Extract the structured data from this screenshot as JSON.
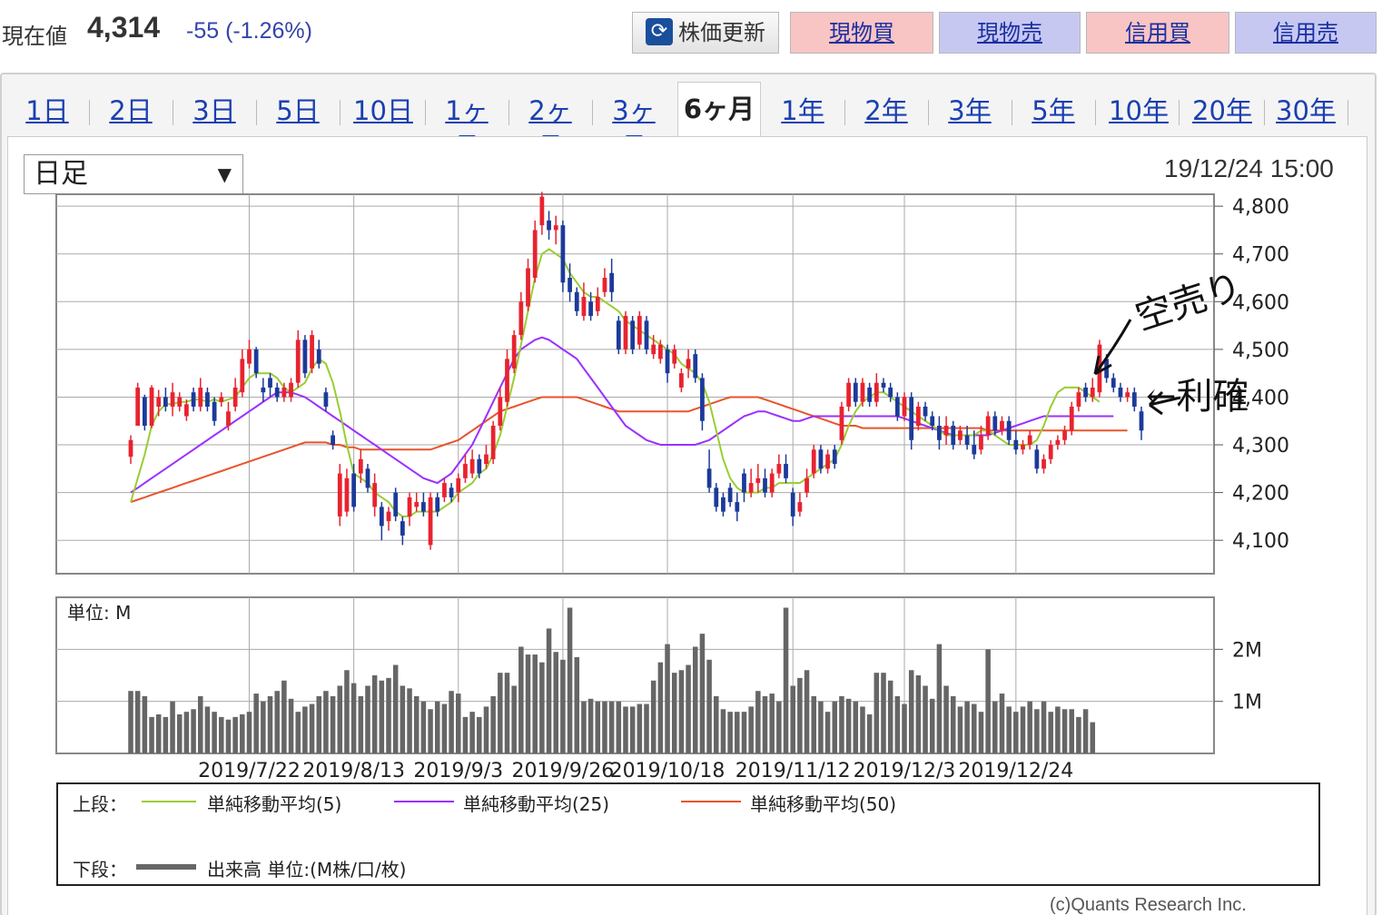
{
  "header": {
    "price_label": "現在値",
    "price_value": "4,314",
    "price_change": "-55 (-1.26%)",
    "refresh_label": "株価更新",
    "buttons": [
      "現物買",
      "現物売",
      "信用買",
      "信用売"
    ]
  },
  "tabs": [
    {
      "label": "1日"
    },
    {
      "label": "2日"
    },
    {
      "label": "3日"
    },
    {
      "label": "5日"
    },
    {
      "label": "10日"
    },
    {
      "label": "1ヶ月"
    },
    {
      "label": "2ヶ月"
    },
    {
      "label": "3ヶ月"
    },
    {
      "label": "6ヶ月",
      "active": true
    },
    {
      "label": "1年"
    },
    {
      "label": "2年"
    },
    {
      "label": "3年"
    },
    {
      "label": "5年"
    },
    {
      "label": "10年"
    },
    {
      "label": "20年"
    },
    {
      "label": "30年"
    }
  ],
  "controls": {
    "period_select": "日足",
    "datetime": "19/12/24 15:00"
  },
  "legend": {
    "upper_label": "上段：",
    "ma5_label": "単純移動平均(5)",
    "ma25_label": "単純移動平均(25)",
    "ma50_label": "単純移動平均(50)",
    "lower_label": "下段：",
    "volume_label": "出来高 単位:(M株/口/枚)"
  },
  "copyright": "(c)Quants Research Inc.",
  "annotations": {
    "karauri": "空売り",
    "seiri": "←利確"
  },
  "colors": {
    "up": "#e8232f",
    "down": "#1b3a9a",
    "ma5": "#9acd32",
    "ma25": "#9b30ff",
    "ma50": "#e8542c",
    "volume": "#666666"
  },
  "chart_data": {
    "type": "candlestick",
    "price_axis": {
      "ticks": [
        "4,800",
        "4,700",
        "4,600",
        "4,500",
        "4,400",
        "4,300",
        "4,200",
        "4,100"
      ],
      "ylim": [
        4030,
        4825
      ]
    },
    "volume_axis": {
      "unit_label": "単位: M",
      "ticks": [
        "2M",
        "1M"
      ],
      "ylim": [
        0,
        3.0
      ]
    },
    "x_labels": [
      "2019/7/22",
      "2019/8/13",
      "2019/9/3",
      "2019/9/26",
      "2019/10/18",
      "2019/11/12",
      "2019/12/3",
      "2019/12/24"
    ],
    "x_label_index": [
      17,
      32,
      47,
      62,
      77,
      95,
      111,
      127
    ],
    "candles": [
      [
        4275,
        4310,
        4260,
        4320
      ],
      [
        4340,
        4420,
        4340,
        4430
      ],
      [
        4400,
        4340,
        4330,
        4405
      ],
      [
        4340,
        4420,
        4335,
        4425
      ],
      [
        4380,
        4400,
        4360,
        4415
      ],
      [
        4400,
        4380,
        4370,
        4420
      ],
      [
        4380,
        4410,
        4360,
        4430
      ],
      [
        4380,
        4400,
        4370,
        4410
      ],
      [
        4360,
        4385,
        4350,
        4395
      ],
      [
        4410,
        4380,
        4370,
        4420
      ],
      [
        4380,
        4420,
        4370,
        4440
      ],
      [
        4410,
        4380,
        4370,
        4420
      ],
      [
        4390,
        4350,
        4340,
        4400
      ],
      [
        4390,
        4400,
        4380,
        4410
      ],
      [
        4340,
        4370,
        4330,
        4390
      ],
      [
        4380,
        4420,
        4370,
        4440
      ],
      [
        4410,
        4480,
        4400,
        4500
      ],
      [
        4470,
        4500,
        4460,
        4520
      ],
      [
        4500,
        4450,
        4440,
        4505
      ],
      [
        4420,
        4410,
        4390,
        4440
      ],
      [
        4440,
        4420,
        4400,
        4450
      ],
      [
        4420,
        4400,
        4390,
        4430
      ],
      [
        4400,
        4420,
        4390,
        4430
      ],
      [
        4400,
        4430,
        4390,
        4440
      ],
      [
        4430,
        4520,
        4420,
        4540
      ],
      [
        4520,
        4450,
        4440,
        4530
      ],
      [
        4460,
        4530,
        4450,
        4540
      ],
      [
        4500,
        4470,
        4460,
        4520
      ],
      [
        4410,
        4380,
        4370,
        4420
      ],
      [
        4320,
        4300,
        4290,
        4330
      ],
      [
        4150,
        4240,
        4130,
        4260
      ],
      [
        4160,
        4230,
        4150,
        4250
      ],
      [
        4240,
        4170,
        4160,
        4260
      ],
      [
        4240,
        4270,
        4220,
        4290
      ],
      [
        4250,
        4210,
        4200,
        4260
      ],
      [
        4170,
        4220,
        4150,
        4240
      ],
      [
        4170,
        4130,
        4100,
        4180
      ],
      [
        4140,
        4160,
        4120,
        4170
      ],
      [
        4200,
        4150,
        4140,
        4210
      ],
      [
        4140,
        4110,
        4090,
        4150
      ],
      [
        4150,
        4190,
        4130,
        4200
      ],
      [
        4170,
        4180,
        4160,
        4200
      ],
      [
        4180,
        4160,
        4150,
        4200
      ],
      [
        4090,
        4190,
        4080,
        4200
      ],
      [
        4190,
        4160,
        4150,
        4200
      ],
      [
        4190,
        4220,
        4180,
        4230
      ],
      [
        4210,
        4190,
        4180,
        4220
      ],
      [
        4200,
        4230,
        4180,
        4240
      ],
      [
        4230,
        4260,
        4220,
        4280
      ],
      [
        4240,
        4270,
        4230,
        4290
      ],
      [
        4270,
        4240,
        4230,
        4280
      ],
      [
        4260,
        4280,
        4250,
        4300
      ],
      [
        4270,
        4340,
        4260,
        4350
      ],
      [
        4340,
        4400,
        4330,
        4420
      ],
      [
        4390,
        4480,
        4380,
        4500
      ],
      [
        4460,
        4530,
        4450,
        4540
      ],
      [
        4530,
        4600,
        4520,
        4620
      ],
      [
        4590,
        4670,
        4580,
        4690
      ],
      [
        4650,
        4750,
        4640,
        4770
      ],
      [
        4760,
        4820,
        4740,
        4830
      ],
      [
        4770,
        4750,
        4730,
        4790
      ],
      [
        4750,
        4760,
        4720,
        4780
      ],
      [
        4760,
        4640,
        4620,
        4770
      ],
      [
        4650,
        4620,
        4600,
        4680
      ],
      [
        4620,
        4580,
        4570,
        4630
      ],
      [
        4570,
        4610,
        4560,
        4640
      ],
      [
        4600,
        4570,
        4560,
        4620
      ],
      [
        4580,
        4610,
        4570,
        4630
      ],
      [
        4620,
        4650,
        4610,
        4670
      ],
      [
        4660,
        4620,
        4600,
        4690
      ],
      [
        4560,
        4500,
        4490,
        4570
      ],
      [
        4500,
        4570,
        4490,
        4580
      ],
      [
        4560,
        4500,
        4490,
        4570
      ],
      [
        4510,
        4570,
        4500,
        4580
      ],
      [
        4560,
        4500,
        4490,
        4570
      ],
      [
        4490,
        4510,
        4480,
        4530
      ],
      [
        4480,
        4510,
        4470,
        4520
      ],
      [
        4500,
        4450,
        4430,
        4510
      ],
      [
        4470,
        4500,
        4460,
        4510
      ],
      [
        4420,
        4450,
        4410,
        4460
      ],
      [
        4460,
        4480,
        4440,
        4500
      ],
      [
        4490,
        4440,
        4430,
        4500
      ],
      [
        4440,
        4350,
        4330,
        4450
      ],
      [
        4250,
        4210,
        4200,
        4290
      ],
      [
        4210,
        4170,
        4160,
        4220
      ],
      [
        4190,
        4160,
        4150,
        4200
      ],
      [
        4210,
        4180,
        4170,
        4220
      ],
      [
        4180,
        4160,
        4140,
        4200
      ],
      [
        4240,
        4200,
        4180,
        4250
      ],
      [
        4200,
        4220,
        4190,
        4250
      ],
      [
        4220,
        4230,
        4200,
        4260
      ],
      [
        4230,
        4200,
        4190,
        4250
      ],
      [
        4200,
        4240,
        4190,
        4250
      ],
      [
        4240,
        4260,
        4230,
        4280
      ],
      [
        4260,
        4230,
        4220,
        4280
      ],
      [
        4200,
        4150,
        4130,
        4210
      ],
      [
        4160,
        4180,
        4150,
        4200
      ],
      [
        4200,
        4230,
        4190,
        4250
      ],
      [
        4240,
        4290,
        4230,
        4300
      ],
      [
        4290,
        4250,
        4240,
        4300
      ],
      [
        4250,
        4280,
        4240,
        4290
      ],
      [
        4290,
        4260,
        4250,
        4300
      ],
      [
        4310,
        4380,
        4300,
        4390
      ],
      [
        4380,
        4430,
        4370,
        4440
      ],
      [
        4430,
        4390,
        4380,
        4440
      ],
      [
        4390,
        4430,
        4380,
        4440
      ],
      [
        4420,
        4390,
        4380,
        4430
      ],
      [
        4390,
        4430,
        4380,
        4450
      ],
      [
        4430,
        4420,
        4410,
        4440
      ],
      [
        4420,
        4400,
        4390,
        4430
      ],
      [
        4400,
        4360,
        4350,
        4410
      ],
      [
        4360,
        4400,
        4350,
        4410
      ],
      [
        4400,
        4310,
        4290,
        4410
      ],
      [
        4340,
        4380,
        4330,
        4390
      ],
      [
        4380,
        4360,
        4350,
        4390
      ],
      [
        4360,
        4340,
        4330,
        4370
      ],
      [
        4340,
        4310,
        4290,
        4360
      ],
      [
        4320,
        4340,
        4300,
        4360
      ],
      [
        4340,
        4300,
        4290,
        4350
      ],
      [
        4310,
        4330,
        4300,
        4340
      ],
      [
        4320,
        4300,
        4290,
        4340
      ],
      [
        4300,
        4280,
        4270,
        4330
      ],
      [
        4290,
        4320,
        4280,
        4340
      ],
      [
        4320,
        4360,
        4310,
        4370
      ],
      [
        4360,
        4330,
        4320,
        4370
      ],
      [
        4330,
        4350,
        4320,
        4360
      ],
      [
        4350,
        4310,
        4300,
        4360
      ],
      [
        4310,
        4290,
        4280,
        4330
      ],
      [
        4290,
        4300,
        4280,
        4310
      ],
      [
        4300,
        4320,
        4290,
        4330
      ],
      [
        4290,
        4250,
        4240,
        4300
      ],
      [
        4250,
        4270,
        4240,
        4280
      ],
      [
        4270,
        4300,
        4260,
        4310
      ],
      [
        4300,
        4310,
        4290,
        4320
      ],
      [
        4310,
        4330,
        4300,
        4340
      ],
      [
        4330,
        4380,
        4320,
        4390
      ],
      [
        4380,
        4410,
        4370,
        4420
      ],
      [
        4420,
        4400,
        4390,
        4430
      ],
      [
        4400,
        4420,
        4390,
        4440
      ],
      [
        4410,
        4510,
        4400,
        4520
      ],
      [
        4480,
        4440,
        4430,
        4490
      ],
      [
        4440,
        4420,
        4410,
        4450
      ],
      [
        4420,
        4400,
        4390,
        4430
      ],
      [
        4400,
        4410,
        4390,
        4420
      ],
      [
        4410,
        4380,
        4370,
        4420
      ],
      [
        4370,
        4330,
        4310,
        4380
      ]
    ],
    "ma5": [
      4180,
      4230,
      4280,
      4340,
      4370,
      4385,
      4385,
      4390,
      4390,
      4395,
      4395,
      4390,
      4395,
      4390,
      4395,
      4400,
      4420,
      4440,
      4450,
      4450,
      4450,
      4440,
      4420,
      4410,
      4420,
      4430,
      4460,
      4480,
      4470,
      4430,
      4370,
      4300,
      4240,
      4230,
      4220,
      4200,
      4190,
      4180,
      4160,
      4150,
      4150,
      4160,
      4160,
      4160,
      4160,
      4170,
      4180,
      4200,
      4210,
      4220,
      4240,
      4250,
      4280,
      4320,
      4380,
      4440,
      4510,
      4580,
      4650,
      4700,
      4710,
      4700,
      4690,
      4660,
      4640,
      4620,
      4610,
      4610,
      4600,
      4590,
      4580,
      4560,
      4550,
      4540,
      4530,
      4520,
      4510,
      4500,
      4490,
      4470,
      4460,
      4450,
      4430,
      4390,
      4330,
      4270,
      4230,
      4210,
      4200,
      4200,
      4200,
      4210,
      4210,
      4220,
      4220,
      4220,
      4220,
      4230,
      4240,
      4250,
      4260,
      4270,
      4300,
      4340,
      4370,
      4390,
      4400,
      4410,
      4410,
      4400,
      4390,
      4380,
      4370,
      4360,
      4350,
      4340,
      4330,
      4320,
      4320,
      4320,
      4320,
      4320,
      4330,
      4330,
      4320,
      4310,
      4300,
      4300,
      4300,
      4300,
      4310,
      4340,
      4380,
      4410,
      4420,
      4420,
      4420,
      4410,
      4400,
      4390
    ],
    "ma25": [
      4200,
      4210,
      4220,
      4230,
      4240,
      4250,
      4260,
      4270,
      4280,
      4290,
      4300,
      4310,
      4320,
      4330,
      4340,
      4350,
      4360,
      4370,
      4380,
      4390,
      4400,
      4410,
      4410,
      4410,
      4405,
      4400,
      4390,
      4380,
      4370,
      4360,
      4350,
      4340,
      4330,
      4320,
      4310,
      4300,
      4290,
      4280,
      4270,
      4260,
      4250,
      4240,
      4230,
      4225,
      4220,
      4230,
      4240,
      4260,
      4280,
      4300,
      4330,
      4360,
      4390,
      4420,
      4450,
      4480,
      4500,
      4510,
      4520,
      4525,
      4520,
      4510,
      4500,
      4490,
      4480,
      4460,
      4440,
      4420,
      4400,
      4380,
      4360,
      4340,
      4330,
      4320,
      4310,
      4305,
      4300,
      4300,
      4300,
      4300,
      4300,
      4300,
      4305,
      4310,
      4320,
      4330,
      4340,
      4350,
      4360,
      4365,
      4370,
      4370,
      4365,
      4360,
      4355,
      4350,
      4350,
      4355,
      4360,
      4360,
      4360,
      4360,
      4360,
      4360,
      4360,
      4360,
      4360,
      4360,
      4360,
      4360,
      4360,
      4355,
      4350,
      4345,
      4340,
      4335,
      4330,
      4325,
      4320,
      4320,
      4320,
      4320,
      4320,
      4320,
      4325,
      4330,
      4335,
      4340,
      4345,
      4350,
      4355,
      4360,
      4360,
      4360,
      4360,
      4360,
      4360,
      4360,
      4360,
      4360,
      4360,
      4360
    ],
    "ma50": [
      4180,
      4185,
      4190,
      4195,
      4200,
      4205,
      4210,
      4215,
      4220,
      4225,
      4230,
      4235,
      4240,
      4245,
      4250,
      4255,
      4260,
      4265,
      4270,
      4275,
      4280,
      4285,
      4290,
      4295,
      4300,
      4305,
      4305,
      4305,
      4305,
      4300,
      4300,
      4295,
      4295,
      4290,
      4290,
      4290,
      4290,
      4290,
      4290,
      4290,
      4290,
      4290,
      4290,
      4290,
      4295,
      4300,
      4305,
      4310,
      4320,
      4330,
      4340,
      4350,
      4360,
      4370,
      4375,
      4380,
      4385,
      4390,
      4395,
      4400,
      4400,
      4400,
      4400,
      4400,
      4400,
      4395,
      4390,
      4385,
      4380,
      4375,
      4370,
      4370,
      4370,
      4370,
      4370,
      4370,
      4370,
      4370,
      4370,
      4370,
      4370,
      4375,
      4380,
      4385,
      4390,
      4395,
      4400,
      4400,
      4400,
      4400,
      4400,
      4395,
      4390,
      4385,
      4380,
      4375,
      4370,
      4365,
      4360,
      4355,
      4350,
      4345,
      4340,
      4340,
      4340,
      4335,
      4335,
      4335,
      4335,
      4335,
      4335,
      4335,
      4335,
      4335,
      4335,
      4335,
      4335,
      4335,
      4335,
      4335,
      4335,
      4335,
      4335,
      4330,
      4330,
      4330,
      4330,
      4330,
      4330,
      4330,
      4330,
      4330,
      4330,
      4330,
      4330,
      4330,
      4330,
      4330,
      4330,
      4330,
      4330,
      4330,
      4330,
      4330
    ],
    "volume": [
      1.2,
      1.2,
      1.1,
      0.7,
      0.75,
      0.7,
      1.0,
      0.75,
      0.8,
      0.85,
      1.1,
      0.9,
      0.8,
      0.7,
      0.65,
      0.7,
      0.75,
      0.8,
      1.15,
      1.0,
      1.1,
      1.2,
      1.4,
      1.05,
      0.8,
      0.9,
      0.95,
      1.1,
      1.2,
      1.1,
      1.3,
      1.6,
      1.35,
      1.1,
      1.3,
      1.5,
      1.4,
      1.45,
      1.7,
      1.3,
      1.25,
      1.1,
      1.0,
      0.85,
      1.0,
      0.95,
      1.2,
      1.15,
      0.7,
      0.8,
      0.7,
      0.9,
      1.1,
      1.55,
      1.55,
      1.3,
      2.05,
      1.9,
      1.9,
      1.75,
      2.4,
      1.95,
      1.8,
      2.8,
      1.85,
      1.0,
      1.05,
      1.0,
      1.0,
      1.0,
      1.0,
      0.9,
      0.9,
      0.95,
      0.95,
      1.4,
      1.75,
      2.1,
      1.55,
      1.6,
      1.7,
      2.05,
      2.3,
      1.8,
      1.1,
      0.85,
      0.8,
      0.8,
      0.8,
      0.9,
      1.2,
      1.1,
      1.15,
      1.0,
      2.8,
      1.3,
      1.45,
      1.6,
      1.1,
      1.0,
      0.8,
      1.0,
      1.1,
      1.05,
      1.0,
      0.9,
      0.75,
      1.55,
      1.55,
      1.4,
      1.1,
      0.95,
      1.6,
      1.5,
      1.3,
      1.05,
      2.1,
      1.3,
      1.1,
      0.9,
      1.0,
      0.95,
      0.8,
      2.0,
      1.0,
      1.15,
      0.9,
      0.8,
      0.9,
      1.0,
      0.85,
      1.0,
      0.8,
      0.9,
      0.85,
      0.85,
      0.7,
      0.85,
      0.6
    ]
  }
}
